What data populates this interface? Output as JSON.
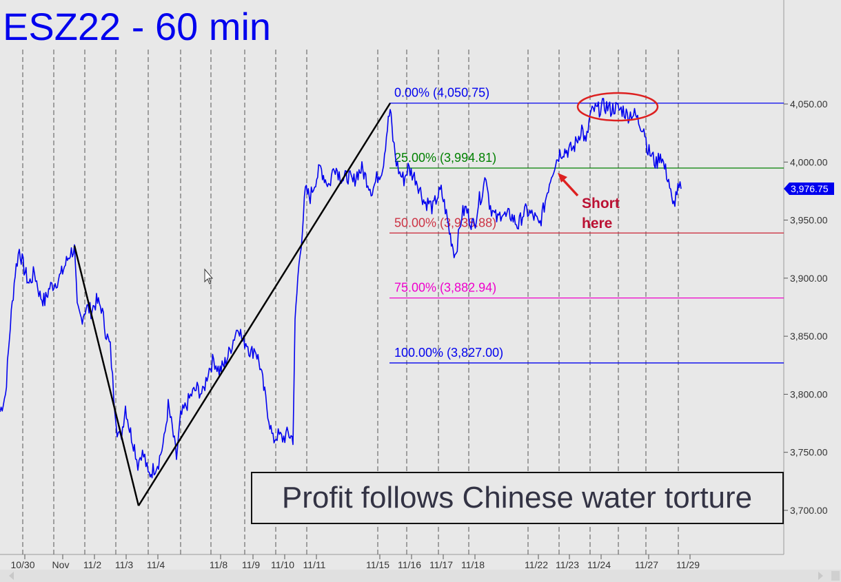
{
  "chart_data": {
    "type": "line",
    "title": "ESZ22 - 60 min",
    "caption": "Profit follows Chinese water torture",
    "annotation": "Short here",
    "last_price": "3,976.75",
    "y_ticks": [
      "4,050.00",
      "4,000.00",
      "3,950.00",
      "3,900.00",
      "3,850.00",
      "3,800.00",
      "3,750.00",
      "3,700.00"
    ],
    "y_tick_values": [
      4050,
      4000,
      3950,
      3900,
      3850,
      3800,
      3750,
      3700
    ],
    "ylim": [
      3665,
      4120
    ],
    "x_tick_labels": [
      "10/30",
      "Nov",
      "11/2",
      "11/3",
      "11/4",
      "11/8",
      "11/9",
      "11/10",
      "11/11",
      "11/15",
      "11/16",
      "11/17",
      "11/18",
      "11/22",
      "11/23",
      "11/24",
      "11/27",
      "11/29"
    ],
    "fib_levels": [
      {
        "label": "0.00% (4,050.75)",
        "value": 4050.75,
        "color": "#0000ee"
      },
      {
        "label": "25.00% (3,994.81)",
        "value": 3994.81,
        "color": "#008000"
      },
      {
        "label": "50.00% (3,938.88)",
        "value": 3938.88,
        "color": "#cc3344"
      },
      {
        "label": "75.00% (3,882.94)",
        "value": 3882.94,
        "color": "#ee00cc"
      },
      {
        "label": "100.00% (3,827.00)",
        "value": 3827.0,
        "color": "#0000ee"
      }
    ],
    "pattern_lines": [
      {
        "from": "10/31",
        "from_price": 3928,
        "to": "11/3",
        "to_price": 3704
      },
      {
        "from": "11/3",
        "to": "11/15",
        "to_price": 4050.75
      }
    ],
    "price_series": [
      [
        0,
        3785
      ],
      [
        8,
        3800
      ],
      [
        15,
        3860
      ],
      [
        22,
        3905
      ],
      [
        28,
        3925
      ],
      [
        35,
        3908
      ],
      [
        42,
        3895
      ],
      [
        50,
        3905
      ],
      [
        58,
        3885
      ],
      [
        65,
        3880
      ],
      [
        72,
        3892
      ],
      [
        80,
        3896
      ],
      [
        88,
        3902
      ],
      [
        95,
        3912
      ],
      [
        102,
        3922
      ],
      [
        108,
        3925
      ],
      [
        112,
        3873
      ],
      [
        118,
        3865
      ],
      [
        125,
        3875
      ],
      [
        132,
        3872
      ],
      [
        140,
        3880
      ],
      [
        147,
        3875
      ],
      [
        153,
        3855
      ],
      [
        160,
        3840
      ],
      [
        165,
        3800
      ],
      [
        170,
        3770
      ],
      [
        175,
        3760
      ],
      [
        182,
        3790
      ],
      [
        188,
        3770
      ],
      [
        195,
        3755
      ],
      [
        200,
        3740
      ],
      [
        205,
        3750
      ],
      [
        210,
        3745
      ],
      [
        215,
        3730
      ],
      [
        222,
        3735
      ],
      [
        230,
        3742
      ],
      [
        238,
        3760
      ],
      [
        244,
        3790
      ],
      [
        250,
        3770
      ],
      [
        256,
        3745
      ],
      [
        262,
        3780
      ],
      [
        270,
        3790
      ],
      [
        278,
        3800
      ],
      [
        286,
        3805
      ],
      [
        294,
        3800
      ],
      [
        302,
        3820
      ],
      [
        310,
        3830
      ],
      [
        318,
        3820
      ],
      [
        325,
        3825
      ],
      [
        332,
        3835
      ],
      [
        340,
        3850
      ],
      [
        346,
        3860
      ],
      [
        352,
        3845
      ],
      [
        358,
        3845
      ],
      [
        364,
        3835
      ],
      [
        370,
        3840
      ],
      [
        377,
        3825
      ],
      [
        384,
        3800
      ],
      [
        390,
        3780
      ],
      [
        396,
        3760
      ],
      [
        402,
        3765
      ],
      [
        410,
        3762
      ],
      [
        418,
        3766
      ],
      [
        425,
        3762
      ],
      [
        428,
        3860
      ],
      [
        432,
        3900
      ],
      [
        437,
        3932
      ],
      [
        443,
        3975
      ],
      [
        450,
        3970
      ],
      [
        458,
        3985
      ],
      [
        465,
        3995
      ],
      [
        472,
        3985
      ],
      [
        478,
        3980
      ],
      [
        485,
        3998
      ],
      [
        492,
        3990
      ],
      [
        498,
        3985
      ],
      [
        505,
        3988
      ],
      [
        512,
        3982
      ],
      [
        518,
        3990
      ],
      [
        525,
        3994
      ],
      [
        532,
        3985
      ],
      [
        540,
        3975
      ],
      [
        548,
        3988
      ],
      [
        555,
        3995
      ],
      [
        562,
        4030
      ],
      [
        566,
        4045
      ],
      [
        570,
        4020
      ],
      [
        575,
        4000
      ],
      [
        580,
        3990
      ],
      [
        586,
        3985
      ],
      [
        592,
        3995
      ],
      [
        598,
        3990
      ],
      [
        604,
        3985
      ],
      [
        610,
        3975
      ],
      [
        616,
        3965
      ],
      [
        622,
        3965
      ],
      [
        628,
        3960
      ],
      [
        634,
        3970
      ],
      [
        640,
        3975
      ],
      [
        646,
        3960
      ],
      [
        652,
        3940
      ],
      [
        656,
        3930
      ],
      [
        660,
        3920
      ],
      [
        665,
        3935
      ],
      [
        670,
        3955
      ],
      [
        676,
        3960
      ],
      [
        682,
        3950
      ],
      [
        688,
        3945
      ],
      [
        694,
        3965
      ],
      [
        700,
        3975
      ],
      [
        705,
        3990
      ],
      [
        710,
        3965
      ],
      [
        716,
        3955
      ],
      [
        722,
        3950
      ],
      [
        728,
        3958
      ],
      [
        734,
        3952
      ],
      [
        740,
        3955
      ],
      [
        746,
        3950
      ],
      [
        752,
        3945
      ],
      [
        758,
        3955
      ],
      [
        764,
        3958
      ],
      [
        770,
        3955
      ],
      [
        776,
        3952
      ],
      [
        782,
        3945
      ],
      [
        788,
        3958
      ],
      [
        794,
        3975
      ],
      [
        800,
        3990
      ],
      [
        806,
        4000
      ],
      [
        812,
        4008
      ],
      [
        818,
        4010
      ],
      [
        825,
        4010
      ],
      [
        832,
        4012
      ],
      [
        838,
        4020
      ],
      [
        844,
        4030
      ],
      [
        850,
        4015
      ],
      [
        856,
        4040
      ],
      [
        862,
        4045
      ],
      [
        868,
        4045
      ],
      [
        874,
        4048
      ],
      [
        880,
        4048
      ],
      [
        886,
        4045
      ],
      [
        892,
        4047
      ],
      [
        898,
        4045
      ],
      [
        904,
        4045
      ],
      [
        910,
        4040
      ],
      [
        916,
        4042
      ],
      [
        922,
        4040
      ],
      [
        928,
        4033
      ],
      [
        934,
        4030
      ],
      [
        940,
        4010
      ],
      [
        946,
        4005
      ],
      [
        952,
        3998
      ],
      [
        958,
        4008
      ],
      [
        964,
        3995
      ],
      [
        970,
        3985
      ],
      [
        976,
        3960
      ],
      [
        982,
        3975
      ],
      [
        988,
        3977
      ]
    ]
  }
}
